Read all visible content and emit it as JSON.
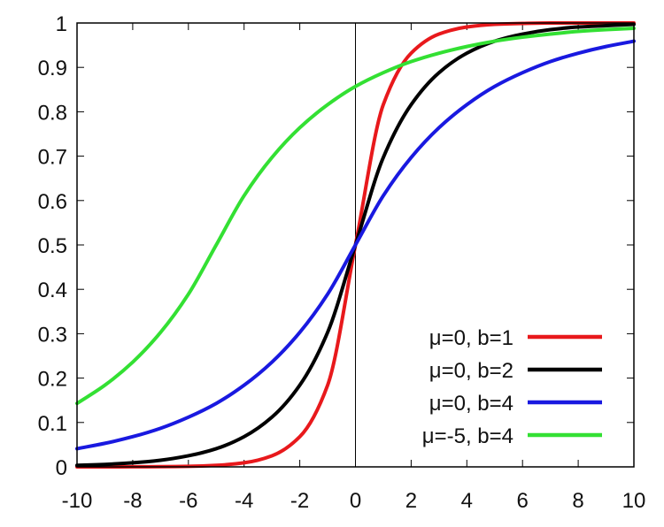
{
  "chart_data": {
    "type": "line",
    "title": "",
    "xlabel": "",
    "ylabel": "",
    "xlim": [
      -10,
      10
    ],
    "ylim": [
      0,
      1
    ],
    "grid": false,
    "x_ticks": [
      -10,
      -8,
      -6,
      -4,
      -2,
      0,
      2,
      4,
      6,
      8,
      10
    ],
    "x_tick_labels": [
      "-10",
      "-8",
      "-6",
      "-4",
      "-2",
      "0",
      "2",
      "4",
      "6",
      "8",
      "10"
    ],
    "y_ticks": [
      0,
      0.1,
      0.2,
      0.3,
      0.4,
      0.5,
      0.6,
      0.7,
      0.8,
      0.9,
      1
    ],
    "y_tick_labels": [
      "0",
      "0.1",
      "0.2",
      "0.3",
      "0.4",
      "0.5",
      "0.6",
      "0.7",
      "0.8",
      "0.9",
      "1"
    ],
    "vertical_reference_line_x": 0,
    "legend_position": "bottom-right",
    "x": [
      -10,
      -9,
      -8,
      -7,
      -6,
      -5,
      -4,
      -3,
      -2,
      -1,
      0,
      1,
      2,
      3,
      4,
      5,
      6,
      7,
      8,
      9,
      10
    ],
    "series": [
      {
        "name": "μ=0, b=1",
        "color": "#e8191c",
        "values": [
          2e-05,
          6e-05,
          0.00017,
          0.00046,
          0.0012,
          0.0034,
          0.0092,
          0.025,
          0.068,
          0.184,
          0.5,
          0.816,
          0.932,
          0.975,
          0.991,
          0.997,
          0.999,
          1.0,
          1.0,
          1.0,
          1.0
        ]
      },
      {
        "name": "μ=0, b=2",
        "color": "#000000",
        "values": [
          0.0034,
          0.0056,
          0.0092,
          0.015,
          0.025,
          0.041,
          0.068,
          0.112,
          0.184,
          0.303,
          0.5,
          0.697,
          0.816,
          0.888,
          0.932,
          0.959,
          0.975,
          0.985,
          0.991,
          0.994,
          0.997
        ]
      },
      {
        "name": "μ=0, b=4",
        "color": "#1919e0",
        "values": [
          0.041,
          0.053,
          0.068,
          0.087,
          0.112,
          0.143,
          0.184,
          0.236,
          0.303,
          0.389,
          0.5,
          0.611,
          0.697,
          0.764,
          0.816,
          0.857,
          0.888,
          0.913,
          0.932,
          0.947,
          0.959
        ]
      },
      {
        "name": "μ=-5, b=4",
        "color": "#33e033",
        "values": [
          0.143,
          0.184,
          0.236,
          0.303,
          0.389,
          0.5,
          0.611,
          0.697,
          0.764,
          0.816,
          0.857,
          0.888,
          0.913,
          0.932,
          0.947,
          0.959,
          0.968,
          0.975,
          0.981,
          0.985,
          0.988
        ]
      }
    ]
  }
}
